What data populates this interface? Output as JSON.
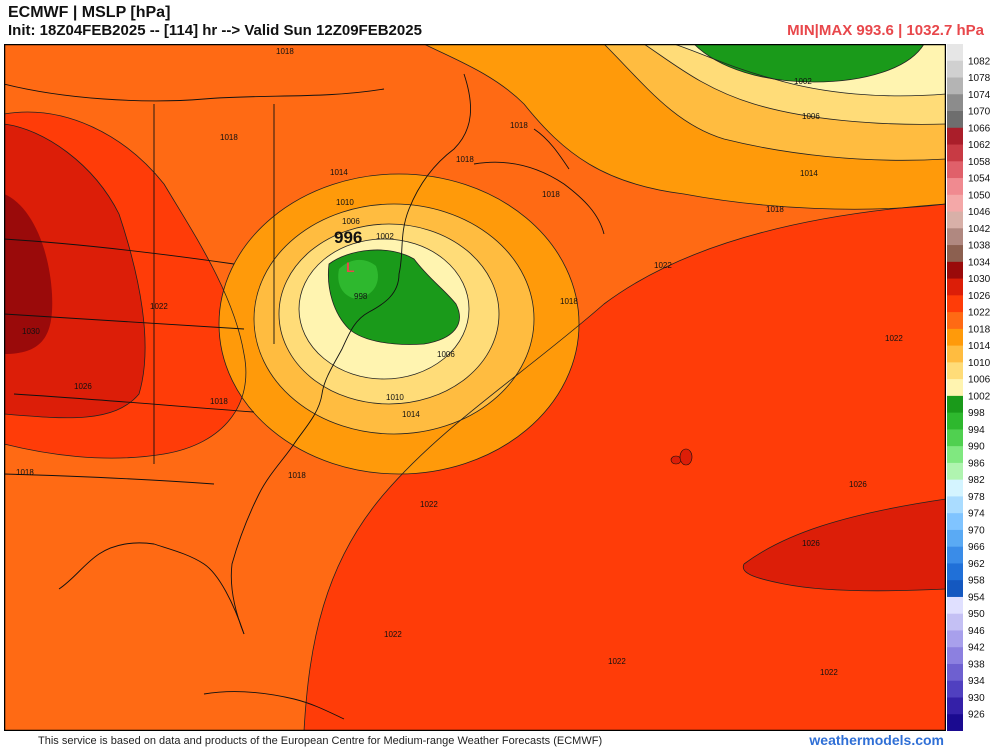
{
  "header": {
    "title_line1": "ECMWF | MSLP [hPa]",
    "title_line2": "Init: 18Z04FEB2025 -- [114] hr --> Valid Sun 12Z09FEB2025",
    "minmax": "MIN|MAX 993.6 | 1032.7 hPa"
  },
  "low_center": {
    "value": "996",
    "symbol": "L"
  },
  "contour_labels": [
    "1018",
    "1018",
    "1018",
    "1018",
    "1018",
    "1018",
    "1018",
    "1018",
    "1018",
    "1018",
    "1014",
    "1014",
    "1014",
    "1010",
    "1010",
    "1006",
    "1006",
    "1006",
    "1002",
    "1002",
    "998",
    "1022",
    "1022",
    "1022",
    "1022",
    "1022",
    "1022",
    "1022",
    "1026",
    "1026",
    "1026",
    "1030"
  ],
  "legend": {
    "items": [
      {
        "label": "1082",
        "color": "#e6e6e6"
      },
      {
        "label": "1078",
        "color": "#d0d0d0"
      },
      {
        "label": "1074",
        "color": "#b4b4b4"
      },
      {
        "label": "1070",
        "color": "#8c8c8c"
      },
      {
        "label": "1066",
        "color": "#6e6e6e"
      },
      {
        "label": "1062",
        "color": "#aa1e2a"
      },
      {
        "label": "1058",
        "color": "#c83a44"
      },
      {
        "label": "1054",
        "color": "#e0606a"
      },
      {
        "label": "1050",
        "color": "#f08a90"
      },
      {
        "label": "1046",
        "color": "#f4a8a8"
      },
      {
        "label": "1042",
        "color": "#d8b0a8"
      },
      {
        "label": "1038",
        "color": "#b08880"
      },
      {
        "label": "1034",
        "color": "#8c6050"
      },
      {
        "label": "1030",
        "color": "#9a0a0a"
      },
      {
        "label": "1026",
        "color": "#dc1e08"
      },
      {
        "label": "1022",
        "color": "#ff3c08"
      },
      {
        "label": "1018",
        "color": "#ff6a14"
      },
      {
        "label": "1014",
        "color": "#ff9a0a"
      },
      {
        "label": "1010",
        "color": "#ffbc40"
      },
      {
        "label": "1006",
        "color": "#ffdc78"
      },
      {
        "label": "1002",
        "color": "#fff4b0"
      },
      {
        "label": "998",
        "color": "#1a9a1a"
      },
      {
        "label": "994",
        "color": "#2eb82e"
      },
      {
        "label": "990",
        "color": "#50d050"
      },
      {
        "label": "986",
        "color": "#80e880"
      },
      {
        "label": "982",
        "color": "#b0f4b0"
      },
      {
        "label": "978",
        "color": "#d4f4ff"
      },
      {
        "label": "974",
        "color": "#aadcff"
      },
      {
        "label": "970",
        "color": "#80c4ff"
      },
      {
        "label": "966",
        "color": "#5aaaf4"
      },
      {
        "label": "962",
        "color": "#3a8ce8"
      },
      {
        "label": "958",
        "color": "#2070d8"
      },
      {
        "label": "954",
        "color": "#1458c0"
      },
      {
        "label": "950",
        "color": "#e0e0ff"
      },
      {
        "label": "946",
        "color": "#c4c0f4"
      },
      {
        "label": "942",
        "color": "#a8a0ec"
      },
      {
        "label": "938",
        "color": "#8c80e0"
      },
      {
        "label": "934",
        "color": "#6e60d0"
      },
      {
        "label": "930",
        "color": "#5040c0"
      },
      {
        "label": "926",
        "color": "#3420a8"
      },
      {
        "label": "",
        "color": "#1a0a90"
      }
    ]
  },
  "footer": {
    "text": "This service is based on data and products of the European Centre for Medium-range Weather Forecasts (ECMWF)",
    "brand": "weathermodels.com"
  }
}
